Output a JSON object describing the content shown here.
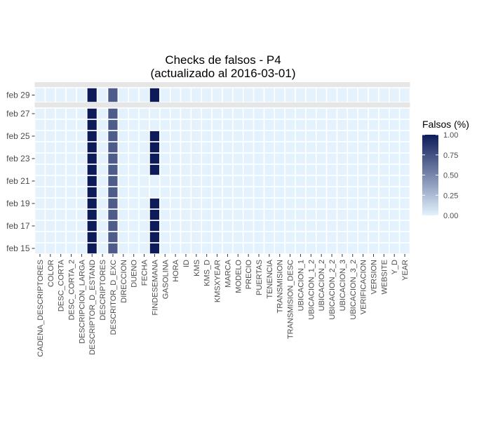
{
  "chart_data": {
    "type": "heatmap",
    "title": "Checks de falsos - P4",
    "subtitle": "(actualizado al 2016-03-01)",
    "xlabel": "",
    "ylabel": "",
    "x_categories": [
      "CADENA_DESCRIPTORES",
      "COLOR",
      "DESC_CORTA",
      "DESC_CORTA_2",
      "DESCRIPCION_LARGA",
      "DESCRIPTOR_D_ESTAND",
      "DESCRIPTORES",
      "DESCRITOR_D_EXC",
      "DIRECCION",
      "DUENO",
      "FECHA",
      "FINDESEMANA",
      "GASOLINA",
      "HORA",
      "ID",
      "KMS",
      "KMS_D",
      "KMSXYEAR",
      "MARCA",
      "MODELO",
      "PRECIO",
      "PUERTAS",
      "TENENCIA",
      "TRANSMISION",
      "TRANSMISION_DESC",
      "UBICACION_1",
      "UBICACION_1_2",
      "UBICACION_2",
      "UBICACION_2_2",
      "UBICACION_3",
      "UBICACION_3_2",
      "VERIFICACION",
      "VERSION",
      "WEBSITE",
      "Y_D",
      "YEAR"
    ],
    "facets": [
      {
        "dates": [
          "feb 29"
        ],
        "y_tick_labels": [
          "feb 29"
        ],
        "cells": [
          {
            "date": "feb 29",
            "variable": "DESCRIPTOR_D_ESTAND",
            "value": 1.0
          },
          {
            "date": "feb 29",
            "variable": "DESCRITOR_D_EXC",
            "value": 0.7
          },
          {
            "date": "feb 29",
            "variable": "FINDESEMANA",
            "value": 1.0
          }
        ]
      },
      {
        "dates": [
          "feb 15",
          "feb 16",
          "feb 17",
          "feb 18",
          "feb 19",
          "feb 20",
          "feb 21",
          "feb 22",
          "feb 23",
          "feb 24",
          "feb 25",
          "feb 26",
          "feb 27"
        ],
        "y_tick_labels": [
          "feb 15",
          "feb 17",
          "feb 19",
          "feb 21",
          "feb 23",
          "feb 25",
          "feb 27"
        ],
        "cells": [
          {
            "date": "feb 15",
            "variable": "DESCRIPTOR_D_ESTAND",
            "value": 1.0
          },
          {
            "date": "feb 16",
            "variable": "DESCRIPTOR_D_ESTAND",
            "value": 1.0
          },
          {
            "date": "feb 17",
            "variable": "DESCRIPTOR_D_ESTAND",
            "value": 1.0
          },
          {
            "date": "feb 18",
            "variable": "DESCRIPTOR_D_ESTAND",
            "value": 1.0
          },
          {
            "date": "feb 19",
            "variable": "DESCRIPTOR_D_ESTAND",
            "value": 1.0
          },
          {
            "date": "feb 20",
            "variable": "DESCRIPTOR_D_ESTAND",
            "value": 1.0
          },
          {
            "date": "feb 21",
            "variable": "DESCRIPTOR_D_ESTAND",
            "value": 1.0
          },
          {
            "date": "feb 22",
            "variable": "DESCRIPTOR_D_ESTAND",
            "value": 1.0
          },
          {
            "date": "feb 23",
            "variable": "DESCRIPTOR_D_ESTAND",
            "value": 1.0
          },
          {
            "date": "feb 24",
            "variable": "DESCRIPTOR_D_ESTAND",
            "value": 1.0
          },
          {
            "date": "feb 25",
            "variable": "DESCRIPTOR_D_ESTAND",
            "value": 1.0
          },
          {
            "date": "feb 26",
            "variable": "DESCRIPTOR_D_ESTAND",
            "value": 1.0
          },
          {
            "date": "feb 27",
            "variable": "DESCRIPTOR_D_ESTAND",
            "value": 1.0
          },
          {
            "date": "feb 15",
            "variable": "DESCRITOR_D_EXC",
            "value": 0.7
          },
          {
            "date": "feb 16",
            "variable": "DESCRITOR_D_EXC",
            "value": 0.7
          },
          {
            "date": "feb 17",
            "variable": "DESCRITOR_D_EXC",
            "value": 0.7
          },
          {
            "date": "feb 18",
            "variable": "DESCRITOR_D_EXC",
            "value": 0.7
          },
          {
            "date": "feb 19",
            "variable": "DESCRITOR_D_EXC",
            "value": 0.7
          },
          {
            "date": "feb 20",
            "variable": "DESCRITOR_D_EXC",
            "value": 0.7
          },
          {
            "date": "feb 21",
            "variable": "DESCRITOR_D_EXC",
            "value": 0.7
          },
          {
            "date": "feb 22",
            "variable": "DESCRITOR_D_EXC",
            "value": 0.7
          },
          {
            "date": "feb 23",
            "variable": "DESCRITOR_D_EXC",
            "value": 0.7
          },
          {
            "date": "feb 24",
            "variable": "DESCRITOR_D_EXC",
            "value": 0.7
          },
          {
            "date": "feb 25",
            "variable": "DESCRITOR_D_EXC",
            "value": 0.7
          },
          {
            "date": "feb 26",
            "variable": "DESCRITOR_D_EXC",
            "value": 0.7
          },
          {
            "date": "feb 27",
            "variable": "DESCRITOR_D_EXC",
            "value": 0.7
          },
          {
            "date": "feb 15",
            "variable": "FINDESEMANA",
            "value": 1.0
          },
          {
            "date": "feb 16",
            "variable": "FINDESEMANA",
            "value": 1.0
          },
          {
            "date": "feb 17",
            "variable": "FINDESEMANA",
            "value": 1.0
          },
          {
            "date": "feb 18",
            "variable": "FINDESEMANA",
            "value": 1.0
          },
          {
            "date": "feb 19",
            "variable": "FINDESEMANA",
            "value": 1.0
          },
          {
            "date": "feb 22",
            "variable": "FINDESEMANA",
            "value": 1.0
          },
          {
            "date": "feb 23",
            "variable": "FINDESEMANA",
            "value": 1.0
          },
          {
            "date": "feb 24",
            "variable": "FINDESEMANA",
            "value": 1.0
          },
          {
            "date": "feb 25",
            "variable": "FINDESEMANA",
            "value": 1.0
          }
        ]
      }
    ],
    "legend": {
      "title": "Falsos (%)",
      "ticks": [
        "0.00",
        "0.25",
        "0.50",
        "0.75",
        "1.00"
      ],
      "range": [
        0,
        1
      ],
      "low_color": "#e3f2fd",
      "high_color": "#0d1b5a",
      "placement": "right"
    },
    "colors": {
      "strip_background": "#e6e6e6",
      "cell_border": "#ffffff"
    },
    "grid": false
  }
}
